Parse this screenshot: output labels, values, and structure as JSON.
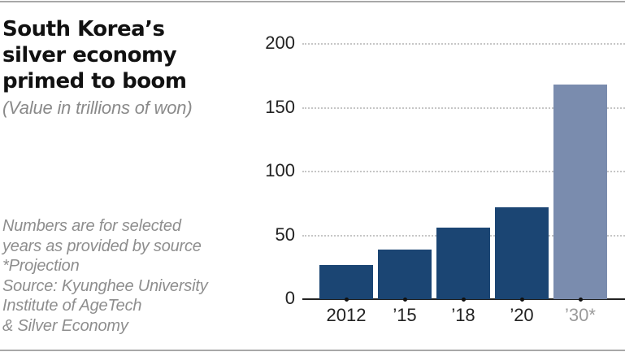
{
  "header": {
    "title_lines": [
      "South Korea’s",
      "silver economy",
      "primed to boom"
    ],
    "subtitle": "(Value in trillions of won)"
  },
  "notes": {
    "lines": [
      "Numbers are for selected",
      "years as provided by source",
      "*Projection",
      "Source: Kyunghee University",
      "Institute of AgeTech",
      "& Silver Economy"
    ]
  },
  "colors": {
    "actual": "#1b4573",
    "projection": "#7a8cae",
    "projection_label": "#9a9a9a"
  },
  "chart_data": {
    "type": "bar",
    "title": "South Korea’s silver economy primed to boom",
    "subtitle": "(Value in trillions of won)",
    "xlabel": "",
    "ylabel": "Value in trillions of won",
    "categories": [
      "2012",
      "’15",
      "’18",
      "’20",
      "’30*"
    ],
    "values": [
      27,
      39,
      56,
      72,
      168
    ],
    "projected": [
      false,
      false,
      false,
      false,
      true
    ],
    "ylim": [
      0,
      200
    ],
    "yticks": [
      "0",
      "50",
      "100",
      "150",
      "200"
    ],
    "grid": true,
    "legend": null,
    "annotations": [
      "*Projection",
      "Numbers are for selected years as provided by source"
    ],
    "source": "Source: Kyunghee University Institute of AgeTech & Silver Economy"
  }
}
